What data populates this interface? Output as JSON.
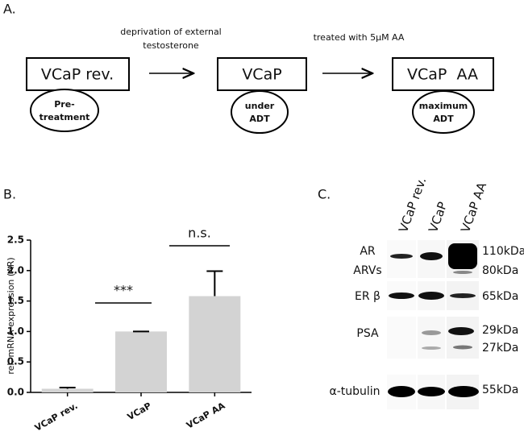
{
  "panel_a": {
    "label": "A.",
    "stages": [
      {
        "name": "VCaP rev.",
        "note": [
          "Pre-",
          "treatment"
        ]
      },
      {
        "name": "VCaP",
        "note": [
          "under",
          "ADT"
        ]
      },
      {
        "name": "VCaP  AA",
        "note": [
          "maximum",
          "ADT"
        ]
      }
    ],
    "arrows": [
      {
        "lines": [
          "deprivation of external",
          "testosterone"
        ]
      },
      {
        "lines": [
          "treated with 5µM AA"
        ]
      }
    ]
  },
  "chart_data": {
    "type": "bar",
    "panel_label": "B.",
    "y_label": "rel. mRNA expression (AR)",
    "categories": [
      "VCaP rev.",
      "VCaP",
      "VCaP AA"
    ],
    "values": [
      0.06,
      1.0,
      1.58
    ],
    "errors": [
      0.02,
      0,
      0.41
    ],
    "color": "#d3d3d3",
    "ylim": [
      0,
      2.5
    ],
    "yticks": [
      {
        "value": 0,
        "label": "0.0"
      },
      0.5,
      {
        "value": 1,
        "label": "1.0"
      },
      1.5,
      {
        "value": 2,
        "label": "2.0"
      },
      2.5
    ],
    "annotations": [
      {
        "text": "***"
      },
      {
        "text": "n.s."
      }
    ]
  },
  "panel_c": {
    "label": "C.",
    "lanes": [
      "VCaP rev.",
      "VCaP",
      "VCaP AA"
    ],
    "proteins": [
      "AR",
      "ARVs",
      "ER β",
      "PSA",
      "α-tubulin"
    ],
    "sizes": [
      "110kDa",
      "80kDa",
      "65kDa",
      "29kDa",
      "27kDa",
      "55kDa"
    ]
  }
}
